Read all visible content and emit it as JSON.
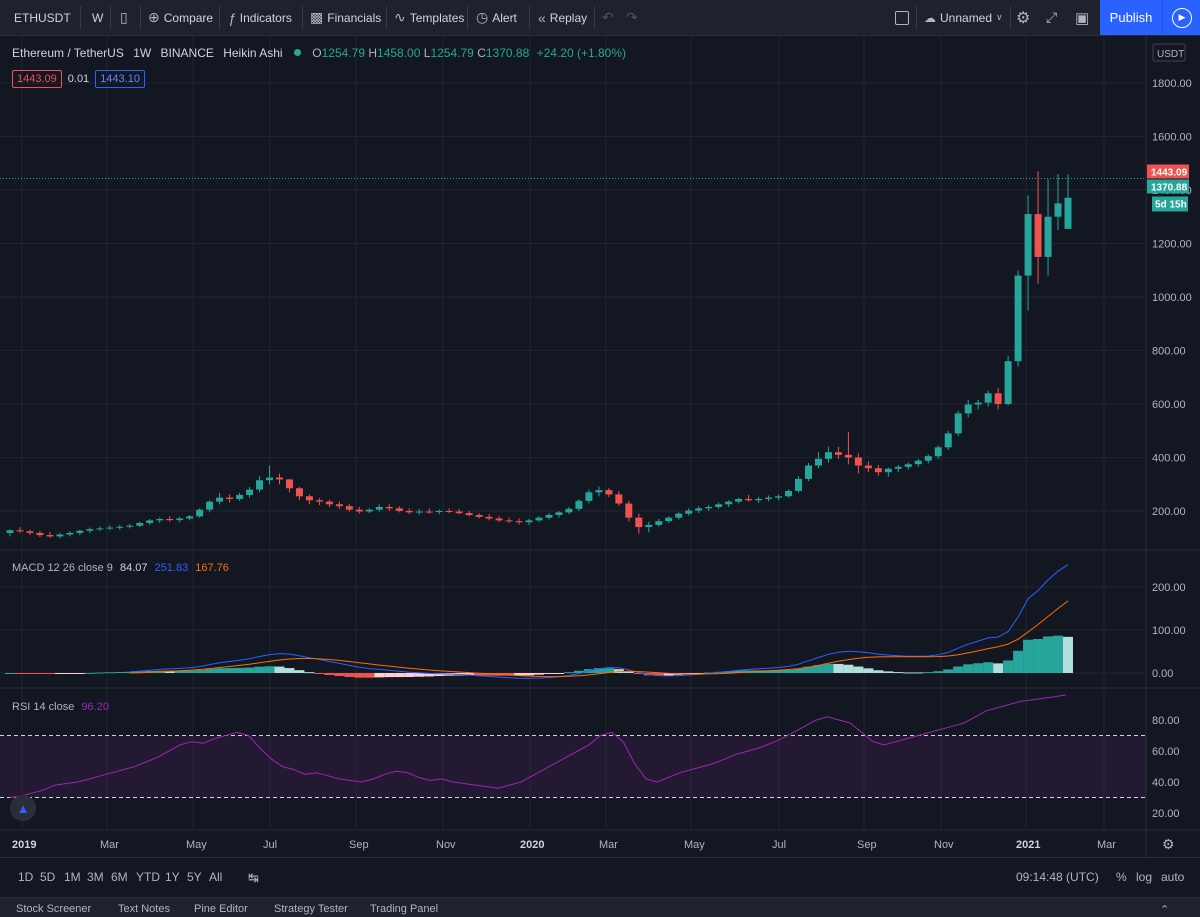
{
  "toolbar": {
    "symbol": "ETHUSDT",
    "interval": "W",
    "compare": "Compare",
    "indicators": "Indicators",
    "financials": "Financials",
    "templates": "Templates",
    "alert": "Alert",
    "replay": "Replay",
    "layout_name": "Unnamed",
    "publish": "Publish"
  },
  "legend": {
    "symbol_name": "Ethereum / TetherUS",
    "interval": "1W",
    "exchange": "BINANCE",
    "chart_style": "Heikin Ashi",
    "open_label": "O",
    "open": "1254.79",
    "high_label": "H",
    "high": "1458.00",
    "low_label": "L",
    "low": "1254.79",
    "close_label": "C",
    "close": "1370.88",
    "change": "+24.20 (+1.80%)",
    "bid": "1443.09",
    "spread": "0.01",
    "ask": "1443.10"
  },
  "price_axis": {
    "currency": "USDT",
    "ticks": [
      "1800.00",
      "1600.00",
      "1400.00",
      "1200.00",
      "1000.00",
      "800.00",
      "600.00",
      "400.00",
      "200.00"
    ],
    "last_price_label": "1443.09",
    "close_label": "1370.88",
    "countdown": "5d 15h"
  },
  "macd": {
    "label": "MACD 12 26 close 9",
    "hist_value": "84.07",
    "macd_value": "251.83",
    "signal_value": "167.76",
    "ticks": [
      "200.00",
      "100.00",
      "0.00"
    ]
  },
  "rsi": {
    "label": "RSI 14 close",
    "value": "96.20",
    "ticks": [
      "80.00",
      "60.00",
      "40.00",
      "20.00"
    ]
  },
  "time_axis": [
    {
      "label": "2019",
      "bold": true
    },
    {
      "label": "Mar",
      "bold": false
    },
    {
      "label": "May",
      "bold": false
    },
    {
      "label": "Jul",
      "bold": false
    },
    {
      "label": "Sep",
      "bold": false
    },
    {
      "label": "Nov",
      "bold": false
    },
    {
      "label": "2020",
      "bold": true
    },
    {
      "label": "Mar",
      "bold": false
    },
    {
      "label": "May",
      "bold": false
    },
    {
      "label": "Jul",
      "bold": false
    },
    {
      "label": "Sep",
      "bold": false
    },
    {
      "label": "Nov",
      "bold": false
    },
    {
      "label": "2021",
      "bold": true
    },
    {
      "label": "Mar",
      "bold": false
    }
  ],
  "bottom_bar": {
    "ranges": [
      "1D",
      "5D",
      "1M",
      "3M",
      "6M",
      "YTD",
      "1Y",
      "5Y",
      "All"
    ],
    "clock": "09:14:48 (UTC)",
    "percent": "%",
    "log": "log",
    "auto": "auto"
  },
  "tabs": [
    "Stock Screener",
    "Text Notes",
    "Pine Editor",
    "Strategy Tester",
    "Trading Panel"
  ],
  "colors": {
    "up": "#26a69a",
    "down": "#ef5350",
    "macd_line": "#2962ff",
    "signal_line": "#ff6d00",
    "rsi_line": "#9c27b0",
    "accent": "#2962ff"
  },
  "chart_data": {
    "type": "candlestick",
    "style": "Heikin Ashi",
    "symbol": "ETHUSDT",
    "interval": "1W",
    "y_axis": "price (USDT)",
    "ylim": [
      50,
      1850
    ],
    "candles_ohlc": [
      [
        118,
        132,
        105,
        128
      ],
      [
        128,
        140,
        118,
        124
      ],
      [
        124,
        130,
        110,
        118
      ],
      [
        118,
        126,
        102,
        110
      ],
      [
        110,
        122,
        100,
        105
      ],
      [
        105,
        118,
        98,
        112
      ],
      [
        112,
        125,
        105,
        118
      ],
      [
        118,
        130,
        110,
        126
      ],
      [
        126,
        138,
        118,
        132
      ],
      [
        132,
        142,
        125,
        135
      ],
      [
        135,
        146,
        128,
        138
      ],
      [
        138,
        148,
        130,
        141
      ],
      [
        141,
        152,
        135,
        145
      ],
      [
        145,
        160,
        140,
        155
      ],
      [
        155,
        170,
        148,
        165
      ],
      [
        165,
        176,
        155,
        170
      ],
      [
        170,
        180,
        160,
        166
      ],
      [
        166,
        178,
        158,
        172
      ],
      [
        172,
        185,
        165,
        180
      ],
      [
        180,
        210,
        175,
        205
      ],
      [
        205,
        240,
        195,
        235
      ],
      [
        235,
        268,
        225,
        250
      ],
      [
        250,
        262,
        232,
        245
      ],
      [
        245,
        268,
        238,
        260
      ],
      [
        260,
        290,
        250,
        280
      ],
      [
        280,
        330,
        270,
        315
      ],
      [
        315,
        370,
        300,
        325
      ],
      [
        325,
        340,
        300,
        318
      ],
      [
        318,
        320,
        270,
        285
      ],
      [
        285,
        290,
        240,
        255
      ],
      [
        255,
        262,
        225,
        240
      ],
      [
        240,
        248,
        222,
        235
      ],
      [
        235,
        242,
        215,
        225
      ],
      [
        225,
        235,
        208,
        218
      ],
      [
        218,
        226,
        198,
        205
      ],
      [
        205,
        215,
        190,
        198
      ],
      [
        198,
        210,
        192,
        205
      ],
      [
        205,
        225,
        198,
        215
      ],
      [
        215,
        225,
        200,
        210
      ],
      [
        210,
        218,
        195,
        200
      ],
      [
        200,
        210,
        188,
        195
      ],
      [
        195,
        208,
        186,
        198
      ],
      [
        198,
        210,
        190,
        196
      ],
      [
        196,
        206,
        188,
        200
      ],
      [
        200,
        210,
        192,
        198
      ],
      [
        198,
        208,
        188,
        192
      ],
      [
        192,
        200,
        180,
        185
      ],
      [
        185,
        192,
        172,
        178
      ],
      [
        178,
        188,
        165,
        172
      ],
      [
        172,
        180,
        158,
        165
      ],
      [
        165,
        175,
        155,
        162
      ],
      [
        162,
        172,
        150,
        158
      ],
      [
        158,
        170,
        148,
        165
      ],
      [
        165,
        180,
        158,
        175
      ],
      [
        175,
        192,
        168,
        185
      ],
      [
        185,
        200,
        175,
        195
      ],
      [
        195,
        215,
        188,
        208
      ],
      [
        208,
        245,
        200,
        238
      ],
      [
        238,
        280,
        228,
        270
      ],
      [
        270,
        292,
        255,
        278
      ],
      [
        278,
        286,
        252,
        262
      ],
      [
        262,
        275,
        220,
        228
      ],
      [
        228,
        238,
        160,
        175
      ],
      [
        175,
        190,
        115,
        140
      ],
      [
        140,
        160,
        120,
        148
      ],
      [
        148,
        170,
        140,
        162
      ],
      [
        162,
        180,
        155,
        175
      ],
      [
        175,
        195,
        168,
        190
      ],
      [
        190,
        210,
        182,
        202
      ],
      [
        202,
        218,
        192,
        210
      ],
      [
        210,
        222,
        200,
        215
      ],
      [
        215,
        232,
        208,
        225
      ],
      [
        225,
        240,
        215,
        235
      ],
      [
        235,
        250,
        228,
        245
      ],
      [
        245,
        260,
        235,
        240
      ],
      [
        240,
        252,
        230,
        245
      ],
      [
        245,
        258,
        236,
        250
      ],
      [
        250,
        262,
        240,
        255
      ],
      [
        255,
        280,
        250,
        275
      ],
      [
        275,
        330,
        268,
        320
      ],
      [
        320,
        380,
        312,
        370
      ],
      [
        370,
        420,
        360,
        395
      ],
      [
        395,
        440,
        380,
        420
      ],
      [
        420,
        440,
        395,
        410
      ],
      [
        410,
        495,
        375,
        400
      ],
      [
        400,
        415,
        340,
        370
      ],
      [
        370,
        385,
        345,
        360
      ],
      [
        360,
        372,
        332,
        345
      ],
      [
        345,
        362,
        328,
        358
      ],
      [
        358,
        372,
        345,
        365
      ],
      [
        365,
        382,
        355,
        375
      ],
      [
        375,
        395,
        365,
        388
      ],
      [
        388,
        412,
        378,
        405
      ],
      [
        405,
        445,
        395,
        438
      ],
      [
        438,
        500,
        428,
        490
      ],
      [
        490,
        575,
        480,
        565
      ],
      [
        565,
        615,
        550,
        598
      ],
      [
        598,
        615,
        580,
        605
      ],
      [
        605,
        650,
        590,
        640
      ],
      [
        640,
        660,
        580,
        600
      ],
      [
        600,
        780,
        595,
        760
      ],
      [
        760,
        1100,
        740,
        1080
      ],
      [
        1080,
        1380,
        950,
        1310
      ],
      [
        1310,
        1470,
        1050,
        1150
      ],
      [
        1150,
        1440,
        1080,
        1300
      ],
      [
        1300,
        1460,
        1250,
        1350
      ],
      [
        1254.79,
        1458,
        1254.79,
        1370.88
      ]
    ],
    "macd_series": {
      "name": "MACD 12 26 close 9",
      "histogram": [
        84.07
      ],
      "macd": [
        251.83
      ],
      "signal": [
        167.76
      ]
    },
    "rsi_series": {
      "name": "RSI 14 close",
      "last": 96.2,
      "upper_band": 70,
      "lower_band": 30,
      "values": [
        30,
        31,
        33,
        35,
        38,
        39,
        40,
        42,
        44,
        46,
        48,
        50,
        53,
        56,
        60,
        64,
        66,
        65,
        68,
        70,
        72,
        70,
        62,
        55,
        50,
        48,
        45,
        46,
        44,
        42,
        41,
        40,
        42,
        45,
        47,
        46,
        43,
        41,
        42,
        40,
        39,
        38,
        37,
        36,
        38,
        40,
        44,
        48,
        52,
        56,
        60,
        64,
        70,
        72,
        66,
        52,
        42,
        40,
        43,
        46,
        48,
        50,
        52,
        55,
        58,
        60,
        62,
        65,
        68,
        72,
        76,
        80,
        82,
        80,
        78,
        72,
        66,
        64,
        66,
        68,
        70,
        72,
        74,
        76,
        78,
        82,
        86,
        88,
        90,
        92,
        93,
        94,
        95,
        96.2
      ]
    }
  }
}
